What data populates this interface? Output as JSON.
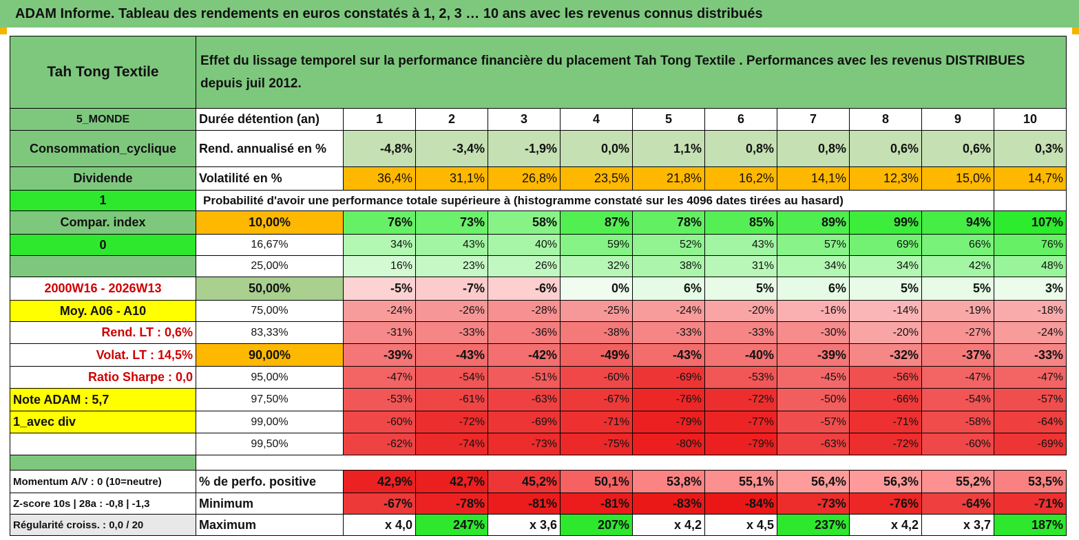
{
  "title": "ADAM Informe. Tableau des rendements en euros constatés à 1, 2, 3 … 10 ans avec les revenus connus distribués",
  "colors": {
    "green_header": "#7ec87e",
    "bright_green": "#2ee82e",
    "yellow": "#ffff00",
    "orange": "#ffb800",
    "dark_red_text": "#d00000"
  },
  "header": {
    "company": "Tah Tong Textile",
    "description": "Effet du lissage temporel sur la performance financière du placement Tah Tong Textile . Performances avec les revenus DISTRIBUES depuis juil 2012."
  },
  "side": [
    "5_MONDE",
    "Consommation_cyclique",
    "Dividende",
    "1",
    "Compar. index",
    "0",
    "",
    "2000W16 - 2026W13",
    "Moy. A06 - A10",
    "Rend. LT :   0,6%",
    "Volat. LT :   14,5%",
    "Ratio Sharpe :    0,0",
    "Note ADAM : 5,7",
    "1_avec div",
    ""
  ],
  "labels": {
    "duration": "Durée détention (an)",
    "annual": "Rend. annualisé en %",
    "volatility": "Volatilité en %",
    "probability": "Probabilité d'avoir une performance totale supérieure à (histogramme constaté sur les 4096 dates tirées au hasard)"
  },
  "years": [
    "1",
    "2",
    "3",
    "4",
    "5",
    "6",
    "7",
    "8",
    "9",
    "10"
  ],
  "annual_returns": [
    "-4,8%",
    "-3,4%",
    "-1,9%",
    "0,0%",
    "1,1%",
    "0,8%",
    "0,8%",
    "0,6%",
    "0,6%",
    "0,3%"
  ],
  "volatility": [
    "36,4%",
    "31,1%",
    "26,8%",
    "23,5%",
    "21,8%",
    "16,2%",
    "14,1%",
    "12,3%",
    "15,0%",
    "14,7%"
  ],
  "quantiles": [
    {
      "label": "10,00%",
      "values": [
        "76%",
        "73%",
        "58%",
        "87%",
        "78%",
        "85%",
        "89%",
        "99%",
        "94%",
        "107%"
      ]
    },
    {
      "label": "16,67%",
      "values": [
        "34%",
        "43%",
        "40%",
        "59%",
        "52%",
        "43%",
        "57%",
        "69%",
        "66%",
        "76%"
      ]
    },
    {
      "label": "25,00%",
      "values": [
        "16%",
        "23%",
        "26%",
        "32%",
        "38%",
        "31%",
        "34%",
        "34%",
        "42%",
        "48%"
      ]
    },
    {
      "label": "50,00%",
      "values": [
        "-5%",
        "-7%",
        "-6%",
        "0%",
        "6%",
        "5%",
        "6%",
        "5%",
        "5%",
        "3%"
      ]
    },
    {
      "label": "75,00%",
      "values": [
        "-24%",
        "-26%",
        "-28%",
        "-25%",
        "-24%",
        "-20%",
        "-16%",
        "-14%",
        "-19%",
        "-18%"
      ]
    },
    {
      "label": "83,33%",
      "values": [
        "-31%",
        "-33%",
        "-36%",
        "-38%",
        "-33%",
        "-33%",
        "-30%",
        "-20%",
        "-27%",
        "-24%"
      ]
    },
    {
      "label": "90,00%",
      "values": [
        "-39%",
        "-43%",
        "-42%",
        "-49%",
        "-43%",
        "-40%",
        "-39%",
        "-32%",
        "-37%",
        "-33%"
      ]
    },
    {
      "label": "95,00%",
      "values": [
        "-47%",
        "-54%",
        "-51%",
        "-60%",
        "-69%",
        "-53%",
        "-45%",
        "-56%",
        "-47%",
        "-47%"
      ]
    },
    {
      "label": "97,50%",
      "values": [
        "-53%",
        "-61%",
        "-63%",
        "-67%",
        "-76%",
        "-72%",
        "-50%",
        "-66%",
        "-54%",
        "-57%"
      ]
    },
    {
      "label": "99,00%",
      "values": [
        "-60%",
        "-72%",
        "-69%",
        "-71%",
        "-79%",
        "-77%",
        "-57%",
        "-71%",
        "-58%",
        "-64%"
      ]
    },
    {
      "label": "99,50%",
      "values": [
        "-62%",
        "-74%",
        "-73%",
        "-75%",
        "-80%",
        "-79%",
        "-63%",
        "-72%",
        "-60%",
        "-69%"
      ]
    }
  ],
  "bottom": {
    "side": [
      "Momentum A/V : 0 (10=neutre)",
      "Z-score 10s | 28a : -0,8 | -1,3",
      "Régularité croiss. : 0,0 / 20"
    ],
    "labels": [
      "% de perfo. positive",
      "Minimum",
      "Maximum"
    ],
    "positive": [
      "42,9%",
      "42,7%",
      "45,2%",
      "50,1%",
      "53,8%",
      "55,1%",
      "56,4%",
      "56,3%",
      "55,2%",
      "53,5%"
    ],
    "minimum": [
      "-67%",
      "-78%",
      "-81%",
      "-81%",
      "-83%",
      "-84%",
      "-73%",
      "-76%",
      "-64%",
      "-71%"
    ],
    "maximum": [
      "x 4,0",
      "247%",
      "x 3,6",
      "207%",
      "x 4,2",
      "x 4,5",
      "237%",
      "x 4,2",
      "x 3,7",
      "187%"
    ]
  }
}
